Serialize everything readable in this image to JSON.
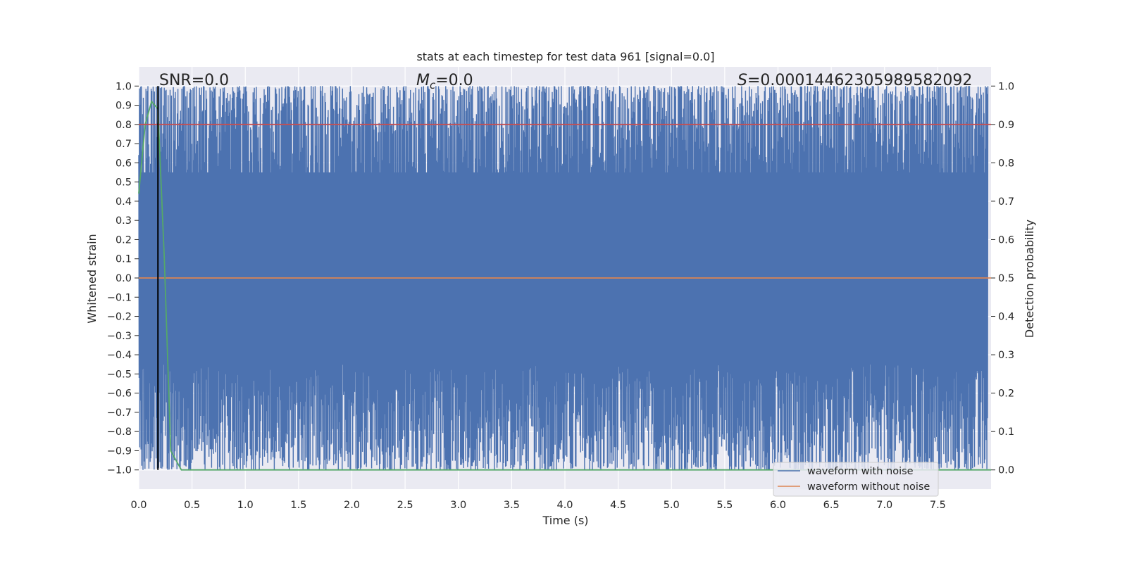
{
  "chart_data": {
    "type": "line",
    "title": "stats at each timestep for test data 961 [signal=0.0]",
    "xlabel": "Time (s)",
    "ylabel_left": "Whitened strain",
    "ylabel_right": "Detection probability",
    "xlim": [
      0.0,
      8.0
    ],
    "ylim_left": [
      -1.1,
      1.1
    ],
    "ylim_right": [
      -0.05,
      1.05
    ],
    "x_ticks": [
      "0.0",
      "0.5",
      "1.0",
      "1.5",
      "2.0",
      "2.5",
      "3.0",
      "3.5",
      "4.0",
      "4.5",
      "5.0",
      "5.5",
      "6.0",
      "6.5",
      "7.0",
      "7.5"
    ],
    "y_ticks_left": [
      "1.0",
      "0.9",
      "0.8",
      "0.7",
      "0.6",
      "0.5",
      "0.4",
      "0.3",
      "0.2",
      "0.1",
      "0.0",
      "−0.1",
      "−0.2",
      "−0.3",
      "−0.4",
      "−0.5",
      "−0.6",
      "−0.7",
      "−0.8",
      "−0.9",
      "−1.0"
    ],
    "y_ticks_right": [
      "1.0",
      "0.9",
      "0.8",
      "0.7",
      "0.6",
      "0.5",
      "0.4",
      "0.3",
      "0.2",
      "0.1",
      "0.0"
    ],
    "grid": true,
    "legend_position": "bottom-right",
    "annotations": {
      "snr": "SNR=0.0",
      "mc_symbol": "M",
      "mc_sub": "c",
      "mc_value": "=0.0",
      "s_symbol": "S",
      "s_value": "=0.00014462305989582092"
    },
    "series": [
      {
        "name": "waveform with noise",
        "color": "#4c72b0",
        "kind": "noise",
        "range": [
          -1.0,
          1.0
        ],
        "axis": "left"
      },
      {
        "name": "waveform without noise",
        "color": "#dd8452",
        "x": [
          0.0,
          8.0
        ],
        "y": [
          0.0,
          0.0
        ],
        "axis": "left"
      },
      {
        "color": "#55a868",
        "axis": "right",
        "x": [
          0.0,
          0.06,
          0.12,
          0.18,
          0.24,
          0.3,
          0.36,
          0.4,
          8.0
        ],
        "y": [
          0.72,
          0.9,
          0.96,
          0.94,
          0.55,
          0.05,
          0.02,
          0.0,
          0.0
        ]
      },
      {
        "color": "#c44e52",
        "axis": "right",
        "x": [
          0.0,
          8.0
        ],
        "y": [
          0.9,
          0.9
        ]
      }
    ],
    "vline": {
      "x": 0.18,
      "color": "#000000"
    }
  }
}
